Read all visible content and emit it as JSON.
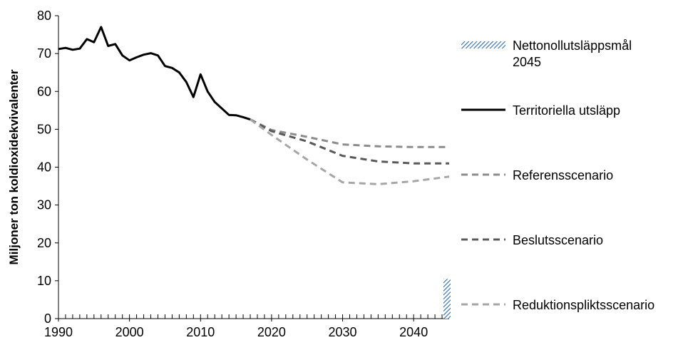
{
  "chart_data": {
    "type": "line",
    "ylabel": "Miljoner ton koldioxidekvivalenter",
    "xlabel": "",
    "xlim": [
      1990,
      2045
    ],
    "ylim": [
      0,
      80
    ],
    "x_ticks": [
      1990,
      2000,
      2010,
      2020,
      2030,
      2040
    ],
    "y_ticks": [
      0,
      10,
      20,
      30,
      40,
      50,
      60,
      70,
      80
    ],
    "grid": false,
    "legend_position": "right",
    "series": [
      {
        "name": "Territoriella utsläpp",
        "style": "solid",
        "color": "#000000",
        "x": [
          1990,
          1991,
          1992,
          1993,
          1994,
          1995,
          1996,
          1997,
          1998,
          1999,
          2000,
          2001,
          2002,
          2003,
          2004,
          2005,
          2006,
          2007,
          2008,
          2009,
          2010,
          2011,
          2012,
          2013,
          2014,
          2015,
          2016,
          2017
        ],
        "y": [
          71.2,
          71.5,
          71.0,
          71.3,
          73.8,
          73.0,
          77.0,
          72.0,
          72.5,
          69.5,
          68.2,
          69.0,
          69.7,
          70.1,
          69.5,
          66.7,
          66.2,
          65.0,
          62.5,
          58.5,
          64.5,
          60.0,
          57.2,
          55.5,
          53.8,
          53.7,
          53.2,
          52.6
        ]
      },
      {
        "name": "Referensscenario",
        "style": "dashed",
        "color": "#8c8c8c",
        "x": [
          2017,
          2020,
          2025,
          2030,
          2035,
          2040,
          2045
        ],
        "y": [
          52.6,
          49.8,
          48.0,
          46.0,
          45.5,
          45.3,
          45.3
        ]
      },
      {
        "name": "Beslutsscenario",
        "style": "dashed",
        "color": "#595959",
        "x": [
          2017,
          2020,
          2025,
          2030,
          2035,
          2040,
          2045
        ],
        "y": [
          52.6,
          49.5,
          46.8,
          43.0,
          41.5,
          41.0,
          41.0
        ]
      },
      {
        "name": "Reduktionspliktsscenario",
        "style": "dashed",
        "color": "#a6a6a6",
        "x": [
          2017,
          2020,
          2025,
          2030,
          2035,
          2040,
          2045
        ],
        "y": [
          52.6,
          48.5,
          42.0,
          36.0,
          35.5,
          36.3,
          37.5
        ]
      }
    ],
    "target": {
      "name": "Nettonollutsläppsmål\n2045",
      "x": 2045,
      "y": 10.5,
      "pattern": "hatched",
      "color": "#1f5fa8"
    }
  },
  "legend": {
    "items": [
      {
        "key": "target",
        "label": "Nettonollutsläppsmål\n2045"
      },
      {
        "key": "territorial",
        "label": "Territoriella utsläpp"
      },
      {
        "key": "reference",
        "label": "Referensscenario"
      },
      {
        "key": "decision",
        "label": "Beslutsscenario"
      },
      {
        "key": "reduction",
        "label": "Reduktionspliktsscenario"
      }
    ]
  }
}
